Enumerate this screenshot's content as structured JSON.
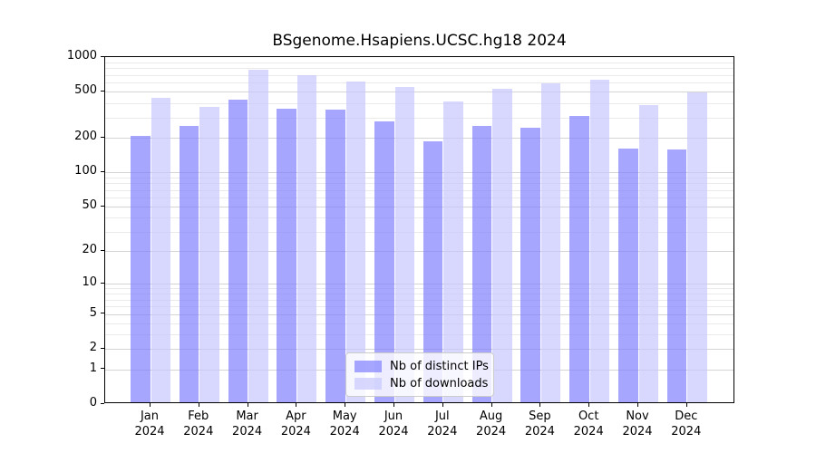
{
  "chart_data": {
    "type": "bar",
    "title": "BSgenome.Hsapiens.UCSC.hg18 2024",
    "categories": [
      "Jan",
      "Feb",
      "Mar",
      "Apr",
      "May",
      "Jun",
      "Jul",
      "Aug",
      "Sep",
      "Oct",
      "Nov",
      "Dec"
    ],
    "year_label": "2024",
    "series": [
      {
        "name": "Nb of distinct IPs",
        "color": "rgba(128,128,255,0.7)",
        "values": [
          200,
          245,
          410,
          345,
          340,
          267,
          178,
          244,
          237,
          297,
          155,
          152
        ]
      },
      {
        "name": "Nb of downloads",
        "color": "rgba(200,200,255,0.7)",
        "values": [
          430,
          360,
          750,
          670,
          595,
          535,
          400,
          510,
          570,
          610,
          370,
          480
        ]
      }
    ],
    "y_ticks": [
      0,
      1,
      2,
      5,
      10,
      20,
      50,
      100,
      200,
      500,
      1000
    ],
    "y_minor_ticks": [
      3,
      4,
      6,
      7,
      8,
      9,
      30,
      40,
      60,
      70,
      80,
      90,
      300,
      400,
      600,
      700,
      800,
      900
    ],
    "y_scale": "log10(v+1)",
    "ylim": [
      0,
      1000
    ],
    "grid": true,
    "legend_position": "lower center"
  },
  "colors": {
    "ips_bar": "rgba(128,128,255,0.7)",
    "downloads_bar": "rgba(200,200,255,0.7)",
    "grid_major": "#d4d4d4",
    "grid_minor": "#eaeaea",
    "spine": "#000000",
    "legend_border": "#cccccc",
    "legend_background": "rgba(255,255,255,0.8)"
  }
}
